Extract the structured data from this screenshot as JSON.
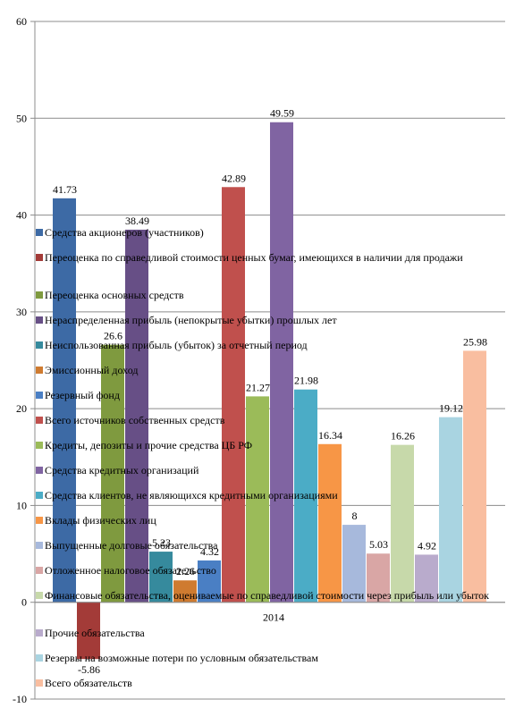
{
  "chart_data": {
    "type": "bar",
    "categories": [
      "2014"
    ],
    "ylim": [
      -10,
      60
    ],
    "yticks": [
      -10,
      0,
      10,
      20,
      30,
      40,
      50,
      60
    ],
    "grid": true,
    "legend_position": "overlay-center",
    "series": [
      {
        "name": "Средства акционеров (участников)",
        "values": [
          41.73
        ],
        "color": "#3d6aa5"
      },
      {
        "name": "Переоценка по справедливой стоимости ценных бумаг, имеющихся в наличии для продажи",
        "values": [
          -5.86
        ],
        "color": "#a33b38"
      },
      {
        "name": "Переоценка основных средств",
        "values": [
          26.6
        ],
        "color": "#7f9a3f"
      },
      {
        "name": "Нераспределенная прибыль (непокрытые убытки) прошлых лет",
        "values": [
          38.49
        ],
        "color": "#674f86"
      },
      {
        "name": "Неиспользованная прибыль (убыток) за отчетный период",
        "values": [
          5.23
        ],
        "color": "#368a9d"
      },
      {
        "name": "Эмиссионный доход",
        "values": [
          2.26
        ],
        "color": "#cf7b30"
      },
      {
        "name": "Резервный фонд",
        "values": [
          4.32
        ],
        "color": "#4a7fc4"
      },
      {
        "name": "Всего источников собственных средств",
        "values": [
          42.89
        ],
        "color": "#c0504d"
      },
      {
        "name": "Кредиты, депозиты и прочие средства ЦБ РФ",
        "values": [
          21.27
        ],
        "color": "#9bbb59"
      },
      {
        "name": "Средства кредитных организаций",
        "values": [
          49.59
        ],
        "color": "#8064a2"
      },
      {
        "name": "Средства клиентов, не являющихся кредитными организациями",
        "values": [
          21.98
        ],
        "color": "#4bacc6"
      },
      {
        "name": "Вклады физических лиц",
        "values": [
          16.34
        ],
        "color": "#f79646"
      },
      {
        "name": "Выпущенные долговые обязательства",
        "values": [
          8
        ],
        "color": "#a7b9dc"
      },
      {
        "name": "Отложенное налоговое обязательство",
        "values": [
          5.03
        ],
        "color": "#d9a6a5"
      },
      {
        "name": "Финансовые обязательства, оцениваемые по справедливой стоимости через прибыль или убыток",
        "values": [
          16.26
        ],
        "color": "#c7d9aa"
      },
      {
        "name": "Прочие обязательства",
        "values": [
          4.92
        ],
        "color": "#b9abcc"
      },
      {
        "name": "Резервы на возможные потери по условным обязательствам",
        "values": [
          19.12
        ],
        "color": "#a9d4e1"
      },
      {
        "name": "Всего обязательств",
        "values": [
          25.98
        ],
        "color": "#f9bea0"
      }
    ]
  }
}
